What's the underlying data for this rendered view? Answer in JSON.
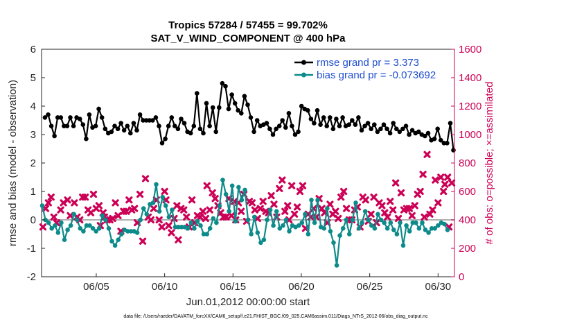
{
  "chart_data": {
    "type": "line",
    "title": "Tropics 57284 / 57455 = 99.702%",
    "subtitle": "SAT_V_WIND_COMPONENT @ 400 hPa",
    "xlabel": "Jun.01,2012 00:00:00 start",
    "ylabel": "rmse and bias (model - observation)",
    "ylabel_right": "# of obs: o=possible; ×=assimilated",
    "footnote": "data file: /Users/raeder/DAI/ATM_forcXX/CAM6_setup/f.e21.FHIST_BGC.f09_025.CAM6assim.011/Diags_NTrS_2012-06/obs_diag_output.nc",
    "xlim": [
      1.0,
      31.2
    ],
    "ylim": [
      -2,
      6
    ],
    "ylim_right": [
      0,
      1600
    ],
    "x_ticks": [
      5,
      10,
      15,
      20,
      25,
      30
    ],
    "x_tick_labels": [
      "06/05",
      "06/10",
      "06/15",
      "06/20",
      "06/25",
      "06/30"
    ],
    "y_ticks": [
      -2,
      -1,
      0,
      1,
      2,
      3,
      4,
      5,
      6
    ],
    "y_ticks_right": [
      0,
      200,
      400,
      600,
      800,
      1000,
      1200,
      1400,
      1600
    ],
    "zero_line": 0,
    "grid": false,
    "legend_position": "top-right",
    "series": [
      {
        "name": "rmse grand pr = 3.373",
        "axis": "left",
        "color": "#000000",
        "marker": "dot",
        "values": [
          3.6,
          3.7,
          3.3,
          2.95,
          3.6,
          3.6,
          3.3,
          3.3,
          3.6,
          3.3,
          3.6,
          3.55,
          3.35,
          2.85,
          3.7,
          3.25,
          3.3,
          3.9,
          3.6,
          3.2,
          3.05,
          3.1,
          3.3,
          3.2,
          3.4,
          3.15,
          3.3,
          3.05,
          3.4,
          3.15,
          3.7,
          3.5,
          3.5,
          3.5,
          3.5,
          3.6,
          3.3,
          2.7,
          2.85,
          3.3,
          3.6,
          3.3,
          3.2,
          3.55,
          3.4,
          3.1,
          3.05,
          3.3,
          4.45,
          3.2,
          3.05,
          4.1,
          3.3,
          3.95,
          3.1,
          3.95,
          4.8,
          4.7,
          3.9,
          4.4,
          4.1,
          3.85,
          3.75,
          4.35,
          4.05,
          3.6,
          3.1,
          3.5,
          3.3,
          3.35,
          3.4,
          3.2,
          3.0,
          3.2,
          3.3,
          3.5,
          3.25,
          3.75,
          3.3,
          3.0,
          3.1,
          4.0,
          3.9,
          3.85,
          3.55,
          3.4,
          3.85,
          3.35,
          3.6,
          3.3,
          3.6,
          3.2,
          3.55,
          3.3,
          3.6,
          3.3,
          3.35,
          3.5,
          3.35,
          3.6,
          3.15,
          3.3,
          3.4,
          3.2,
          3.35,
          3.1,
          3.2,
          3.35,
          3.2,
          3.05,
          3.4,
          3.2,
          3.1,
          3.2,
          3.3,
          3.0,
          3.15,
          3.05,
          3.1,
          3.0,
          2.95,
          3.05,
          2.8,
          2.85,
          3.2,
          2.8,
          2.7,
          2.7,
          3.4,
          2.45,
          2.6
        ],
        "x_start": 1.25,
        "x_step": 0.2316
      },
      {
        "name": "bias grand pr = -0.073692",
        "axis": "left",
        "color": "#0d8a8a",
        "marker": "dot",
        "values": [
          0.5,
          0.0,
          -0.1,
          -0.3,
          -0.2,
          -0.45,
          -0.1,
          -0.7,
          -0.35,
          -0.2,
          0.2,
          0.0,
          -0.3,
          -0.4,
          -0.2,
          -0.2,
          -0.3,
          -0.4,
          -0.3,
          0.15,
          0.0,
          -0.3,
          -0.75,
          -0.9,
          -0.7,
          -0.5,
          -0.35,
          -0.4,
          -0.4,
          -0.4,
          -0.45,
          0.0,
          0.4,
          0.2,
          0.55,
          0.6,
          1.25,
          0.3,
          0.8,
          0.5,
          0.1,
          0.35,
          -0.25,
          -0.25,
          -0.25,
          -0.25,
          -0.3,
          -0.1,
          -0.3,
          -0.05,
          -0.2,
          -0.5,
          -0.5,
          -0.3,
          0.05,
          -0.1,
          0.5,
          1.4,
          0.9,
          0.3,
          1.2,
          -0.05,
          1.15,
          0.7,
          1.05,
          0.0,
          -0.5,
          0.1,
          -0.45,
          -0.8,
          -0.7,
          0.0,
          0.35,
          -0.2,
          0.3,
          -0.3,
          -0.2,
          0.0,
          -0.4,
          -0.2,
          -0.25,
          -0.2,
          -0.1,
          0.2,
          -0.5,
          0.7,
          -0.1,
          0.7,
          -0.25,
          -0.3,
          0.4,
          -0.4,
          -0.8,
          -1.6,
          -0.55,
          -0.3,
          0.0,
          -0.5,
          0.0,
          0.6,
          -0.3,
          -0.1,
          0.3,
          0.0,
          -0.2,
          -0.3,
          0.2,
          0.0,
          -0.1,
          -0.3,
          -0.1,
          -0.35,
          -0.5,
          -0.1,
          -0.9,
          -0.2,
          -0.4,
          -0.1,
          -0.1,
          -0.3,
          -0.1,
          -0.35,
          -0.45,
          -0.3,
          -0.3,
          -0.2,
          -0.1,
          -0.15,
          -0.35
        ],
        "x_start": 1.05,
        "x_step": 0.2316
      }
    ],
    "marker_series": [
      {
        "name": "# of obs possible",
        "axis": "right",
        "color": "#cc0055",
        "marker": "x",
        "x": [
          1.1,
          1.5,
          1.9,
          2.4,
          2.9,
          3.4,
          3.8,
          4.2,
          4.6,
          5.0,
          5.3,
          5.6,
          6.0,
          6.4,
          6.8,
          7.2,
          7.6,
          8.0,
          8.4,
          8.8,
          9.2,
          9.6,
          10.0,
          10.3,
          10.7,
          11.0,
          11.4,
          11.8,
          12.2,
          12.6,
          13.0,
          13.3,
          13.7,
          14.1,
          14.5,
          14.9,
          15.2,
          15.6,
          16.0,
          16.4,
          16.8,
          17.2,
          17.6,
          18.0,
          18.4,
          18.8,
          19.1,
          19.5,
          19.9,
          20.3,
          20.7,
          21.1,
          21.5,
          21.9,
          22.3,
          22.7,
          23.1,
          23.5,
          23.9,
          24.3,
          24.7,
          25.1,
          25.5,
          25.9,
          26.3,
          26.7,
          27.1,
          27.5,
          27.9,
          28.3,
          28.7,
          29.0,
          29.4,
          29.8,
          30.2,
          30.5,
          30.8
        ],
        "values": [
          350,
          520,
          420,
          470,
          540,
          520,
          400,
          560,
          450,
          480,
          360,
          420,
          400,
          520,
          320,
          460,
          470,
          380,
          250,
          420,
          480,
          400,
          600,
          360,
          410,
          260,
          470,
          350,
          380,
          420,
          410,
          470,
          550,
          450,
          420,
          430,
          400,
          460,
          390,
          520,
          410,
          530,
          450,
          510,
          620,
          460,
          400,
          440,
          600,
          340,
          420,
          420,
          480,
          380,
          440,
          410,
          600,
          400,
          470,
          350,
          540,
          440,
          380,
          500,
          420,
          470,
          410,
          470,
          480,
          500,
          600,
          420,
          440,
          680,
          700,
          650,
          350
        ],
        "sizes_note": "counts of possible observations"
      },
      {
        "name": "# of obs assimilated",
        "axis": "right",
        "color": "#cc0055",
        "marker": "x",
        "x": [
          1.3,
          1.7,
          2.1,
          2.6,
          3.1,
          3.6,
          4.0,
          4.4,
          4.8,
          5.2,
          5.5,
          5.8,
          6.2,
          6.6,
          7.0,
          7.4,
          7.8,
          8.2,
          8.6,
          9.0,
          9.4,
          9.8,
          10.1,
          10.5,
          10.9,
          11.2,
          11.6,
          12.0,
          12.4,
          12.8,
          13.1,
          13.5,
          13.9,
          14.3,
          14.7,
          15.1,
          15.4,
          15.8,
          16.2,
          16.6,
          17.0,
          17.4,
          17.8,
          18.2,
          18.6,
          19.0,
          19.3,
          19.7,
          20.1,
          20.5,
          20.9,
          21.3,
          21.7,
          22.1,
          22.5,
          22.9,
          23.3,
          23.7,
          24.1,
          24.5,
          24.9,
          25.3,
          25.7,
          26.1,
          26.5,
          26.9,
          27.3,
          27.7,
          28.1,
          28.5,
          28.9,
          29.2,
          29.6,
          30.0,
          30.4,
          30.7,
          31.0
        ],
        "values": [
          480,
          560,
          380,
          520,
          430,
          420,
          560,
          470,
          580,
          500,
          450,
          400,
          410,
          430,
          460,
          540,
          480,
          580,
          690,
          400,
          540,
          350,
          540,
          310,
          500,
          480,
          420,
          540,
          430,
          460,
          640,
          590,
          500,
          420,
          550,
          530,
          520,
          580,
          530,
          470,
          480,
          460,
          570,
          420,
          680,
          500,
          640,
          490,
          640,
          440,
          480,
          550,
          450,
          510,
          460,
          560,
          480,
          400,
          490,
          560,
          390,
          560,
          520,
          450,
          530,
          660,
          590,
          480,
          430,
          580,
          720,
          860,
          470,
          520,
          600,
          700,
          660
        ]
      }
    ]
  }
}
